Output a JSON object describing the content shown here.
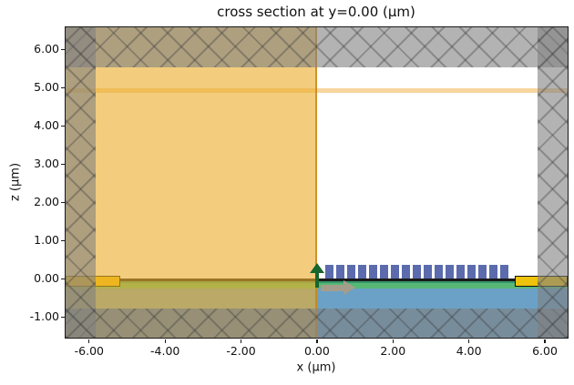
{
  "title": "cross section at y=0.00 (μm)",
  "axes": {
    "xlabel": "x (μm)",
    "ylabel": "z (μm)",
    "x_tick_labels": [
      "-6.00",
      "-4.00",
      "-2.00",
      "0.00",
      "2.00",
      "4.00",
      "6.00"
    ],
    "y_tick_labels": [
      "6.00",
      "5.00",
      "4.00",
      "3.00",
      "2.00",
      "1.00",
      "0.00",
      "-1.00"
    ],
    "x_range": [
      -6.62,
      6.6
    ],
    "z_range": [
      -1.54,
      6.58
    ],
    "grid": false
  },
  "chart_data": {
    "type": "cross-section structure plot",
    "title": "cross section at y=0.00 (μm)",
    "xlabel": "x (μm)",
    "ylabel": "z (μm)",
    "xlim": [
      -6.62,
      6.6
    ],
    "zlim": [
      -1.54,
      6.58
    ],
    "background_color": "#ffffff",
    "structures": [
      {
        "name": "thin-orange-layer",
        "x": [
          -6.62,
          6.6
        ],
        "z": [
          4.87,
          4.99
        ],
        "color": "#f7d59e"
      },
      {
        "name": "black-interface-line",
        "x": [
          -6.62,
          6.6
        ],
        "z": [
          -0.06,
          0.01
        ],
        "color": "#1a1a1a"
      },
      {
        "name": "green-layer-band",
        "x": [
          -6.62,
          6.6
        ],
        "z": [
          -0.26,
          -0.06
        ],
        "color": "#57b876",
        "top_edge_color": "#35986a"
      },
      {
        "name": "blue-layer-band",
        "x": [
          -6.62,
          6.6
        ],
        "z": [
          -1.54,
          -0.26
        ],
        "color": "#6ba1c6"
      },
      {
        "name": "metal-pad-left",
        "x": [
          -6.62,
          -5.18
        ],
        "z": [
          -0.2,
          0.09
        ],
        "color": "#eec20d",
        "border_color": "#111111"
      },
      {
        "name": "metal-pad-right",
        "x": [
          5.2,
          6.6
        ],
        "z": [
          -0.2,
          0.09
        ],
        "color": "#eec20d",
        "border_color": "#111111"
      }
    ],
    "grating": {
      "name": "grating-teeth",
      "x_start": 0.22,
      "period": 0.288,
      "tooth_width": 0.215,
      "count": 17,
      "z": [
        0.0,
        0.37
      ],
      "color": "#5b6bad"
    },
    "cladding_overlay": {
      "name": "cladding-overlay",
      "x": [
        -6.62,
        0.0
      ],
      "z": [
        -1.54,
        6.58
      ],
      "color": "rgba(235,175,45,0.62)",
      "hatch": "horizontal-lines",
      "right_edge_color": "rgba(200,130,20,0.8)"
    },
    "pml_regions": [
      {
        "name": "pml-region-top",
        "x": [
          -6.62,
          6.6
        ],
        "z": [
          5.53,
          6.58
        ]
      },
      {
        "name": "pml-region-bottom",
        "x": [
          -6.62,
          6.6
        ],
        "z": [
          -1.54,
          -0.78
        ]
      },
      {
        "name": "pml-region-left",
        "x": [
          -6.62,
          -5.82
        ],
        "z": [
          -1.54,
          6.58
        ]
      },
      {
        "name": "pml-region-right",
        "x": [
          5.81,
          6.6
        ],
        "z": [
          -1.54,
          6.58
        ]
      }
    ],
    "pml_style": {
      "color": "rgba(128,128,128,0.60)",
      "hatch": "crosshatch-x"
    },
    "arrows": [
      {
        "name": "up-arrow",
        "direction": "up",
        "x": 0.0,
        "z_tail": -0.22,
        "z_tip": 0.42,
        "color": "#17652f"
      },
      {
        "name": "right-arrow",
        "direction": "right",
        "x_tail": 0.1,
        "x_tip": 1.02,
        "z": -0.24,
        "color": "#a49d8b"
      }
    ]
  }
}
